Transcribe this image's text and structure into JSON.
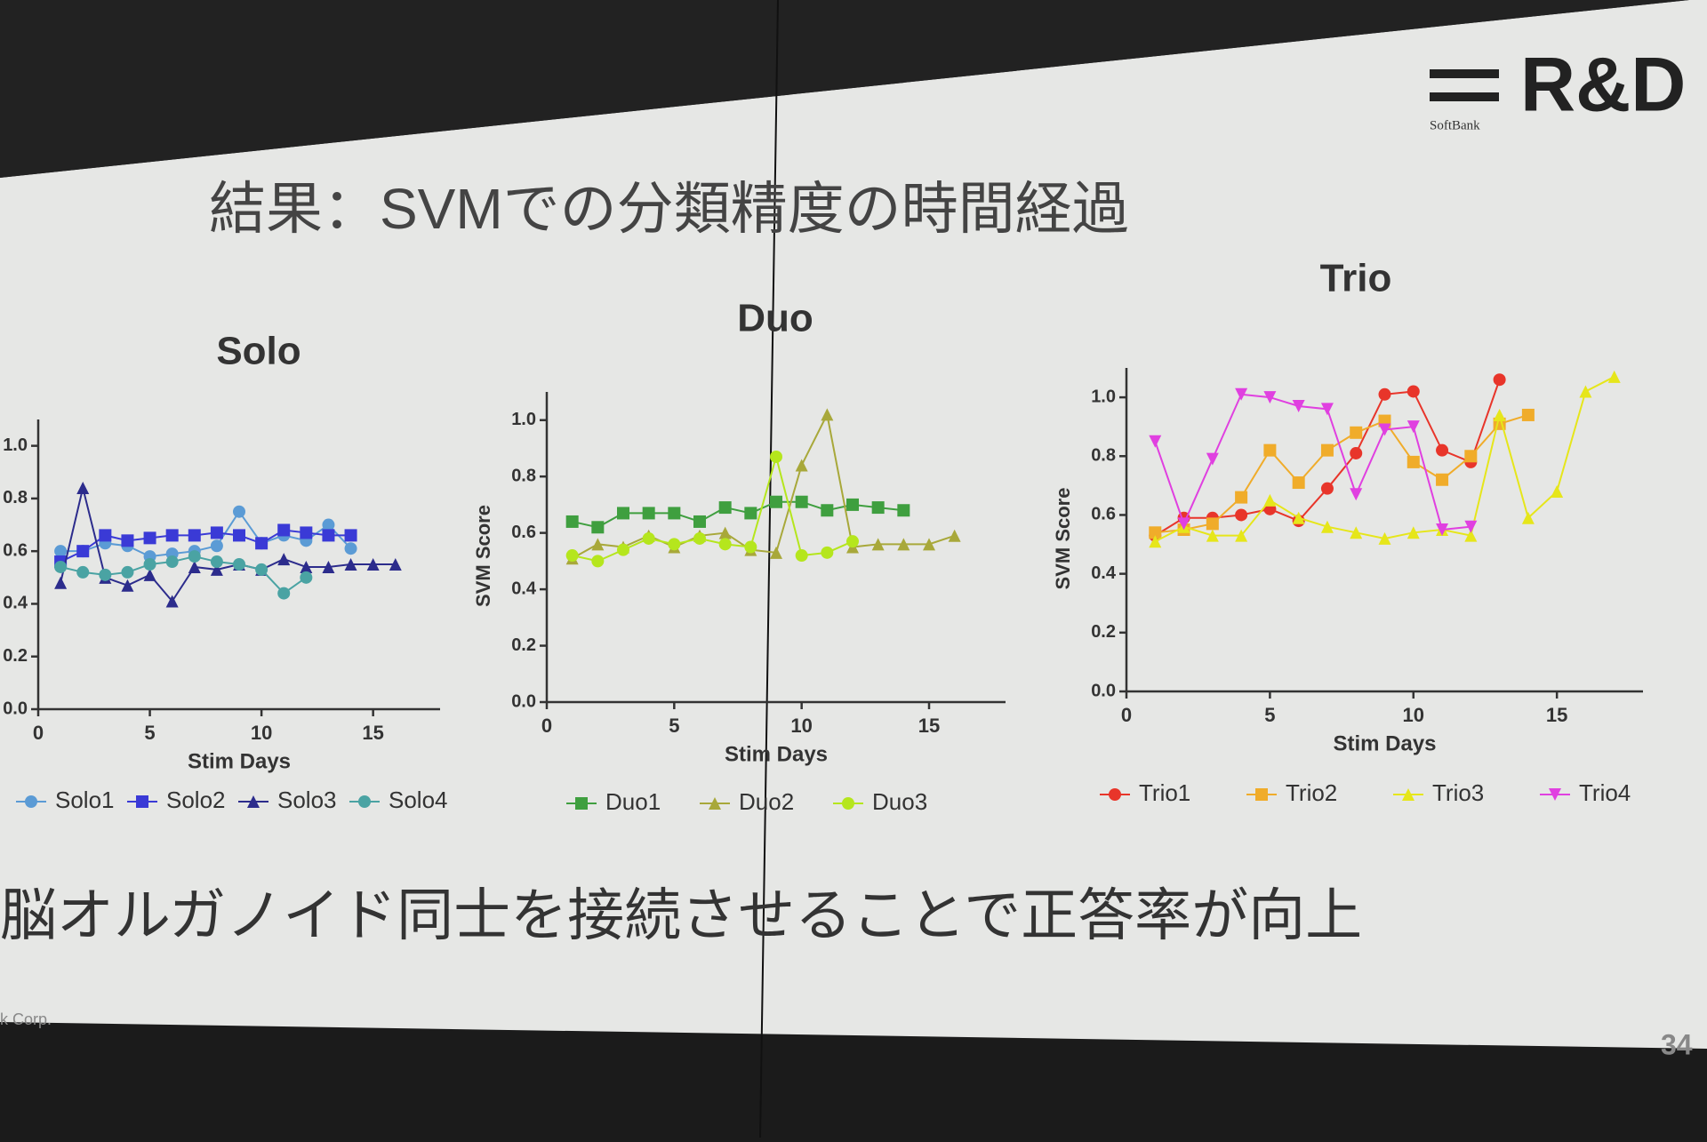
{
  "slide": {
    "title": "結果：SVMでの分類精度の時間経過",
    "logo": "R&D",
    "logo_sub": "SoftBank",
    "message": "脳オルガノイド同士を接続させることで正答率が向上",
    "footer": "k Corp.",
    "page": "34"
  },
  "chart_data": [
    {
      "type": "line",
      "title": "Solo",
      "x_label": "Stim Days",
      "xlim": [
        0,
        18
      ],
      "xticks": [
        0,
        5,
        10,
        15
      ],
      "ylim": [
        0,
        1.1
      ],
      "yticks": [
        {
          "value": 0,
          "label": "0.0"
        },
        0.2,
        0.4,
        0.6,
        0.8,
        {
          "value": 1,
          "label": "1.0"
        }
      ],
      "series": [
        {
          "name": "Solo1",
          "color": "#5b9bd5",
          "marker": "circle",
          "x": [
            1,
            2,
            3,
            4,
            5,
            6,
            7,
            8,
            9,
            10,
            11,
            12,
            13,
            14
          ],
          "values": [
            0.6,
            0.6,
            0.63,
            0.62,
            0.58,
            0.59,
            0.6,
            0.62,
            0.75,
            0.63,
            0.66,
            0.64,
            0.7,
            0.61
          ]
        },
        {
          "name": "Solo2",
          "color": "#3a3ad6",
          "marker": "square",
          "x": [
            1,
            2,
            3,
            4,
            5,
            6,
            7,
            8,
            9,
            10,
            11,
            12,
            13,
            14
          ],
          "values": [
            0.56,
            0.6,
            0.66,
            0.64,
            0.65,
            0.66,
            0.66,
            0.67,
            0.66,
            0.63,
            0.68,
            0.67,
            0.66,
            0.66
          ]
        },
        {
          "name": "Solo3",
          "color": "#2c2c8c",
          "marker": "triangle",
          "x": [
            1,
            2,
            3,
            4,
            5,
            6,
            7,
            8,
            9,
            10,
            11,
            12,
            13,
            14,
            15,
            16
          ],
          "values": [
            0.48,
            0.84,
            0.5,
            0.47,
            0.51,
            0.41,
            0.54,
            0.53,
            0.55,
            0.53,
            0.57,
            0.54,
            0.54,
            0.55,
            0.55,
            0.55
          ]
        },
        {
          "name": "Solo4",
          "color": "#4aa3a3",
          "marker": "circle",
          "x": [
            1,
            2,
            3,
            4,
            5,
            6,
            7,
            8,
            9,
            10,
            11,
            12
          ],
          "values": [
            0.54,
            0.52,
            0.51,
            0.52,
            0.55,
            0.56,
            0.58,
            0.56,
            0.55,
            0.53,
            0.44,
            0.5
          ]
        }
      ]
    },
    {
      "type": "line",
      "title": "Duo",
      "x_label": "Stim Days",
      "y_label": "SVM Score",
      "xlim": [
        0,
        18
      ],
      "xticks": [
        0,
        5,
        10,
        15
      ],
      "ylim": [
        0,
        1.1
      ],
      "yticks": [
        {
          "value": 0,
          "label": "0.0"
        },
        0.2,
        0.4,
        0.6,
        0.8,
        {
          "value": 1,
          "label": "1.0"
        }
      ],
      "series": [
        {
          "name": "Duo1",
          "color": "#3f9f3f",
          "marker": "square",
          "x": [
            1,
            2,
            3,
            4,
            5,
            6,
            7,
            8,
            9,
            10,
            11,
            12,
            13,
            14
          ],
          "values": [
            0.64,
            0.62,
            0.67,
            0.67,
            0.67,
            0.64,
            0.69,
            0.67,
            0.71,
            0.71,
            0.68,
            0.7,
            0.69,
            0.68
          ]
        },
        {
          "name": "Duo2",
          "color": "#a8a83a",
          "marker": "triangle",
          "x": [
            1,
            2,
            3,
            4,
            5,
            6,
            7,
            8,
            9,
            10,
            11,
            12,
            13,
            14,
            15,
            16
          ],
          "values": [
            0.51,
            0.56,
            0.55,
            0.59,
            0.55,
            0.59,
            0.6,
            0.54,
            0.53,
            0.84,
            1.02,
            0.55,
            0.56,
            0.56,
            0.56,
            0.59
          ]
        },
        {
          "name": "Duo3",
          "color": "#b5e61d",
          "marker": "circle",
          "x": [
            1,
            2,
            3,
            4,
            5,
            6,
            7,
            8,
            9,
            10,
            11,
            12
          ],
          "values": [
            0.52,
            0.5,
            0.54,
            0.58,
            0.56,
            0.58,
            0.56,
            0.55,
            0.87,
            0.52,
            0.53,
            0.57
          ]
        }
      ]
    },
    {
      "type": "line",
      "title": "Trio",
      "x_label": "Stim Days",
      "y_label": "SVM Score",
      "xlim": [
        0,
        18
      ],
      "xticks": [
        0,
        5,
        10,
        15
      ],
      "ylim": [
        0,
        1.1
      ],
      "yticks": [
        {
          "value": 0,
          "label": "0.0"
        },
        0.2,
        0.4,
        0.6,
        0.8,
        {
          "value": 1,
          "label": "1.0"
        }
      ],
      "series": [
        {
          "name": "Trio1",
          "color": "#e8352a",
          "marker": "circle",
          "x": [
            1,
            2,
            3,
            4,
            5,
            6,
            7,
            8,
            9,
            10,
            11,
            12,
            13
          ],
          "values": [
            0.53,
            0.59,
            0.59,
            0.6,
            0.62,
            0.58,
            0.69,
            0.81,
            1.01,
            1.02,
            0.82,
            0.78,
            1.06
          ]
        },
        {
          "name": "Trio2",
          "color": "#f0ac2a",
          "marker": "square",
          "x": [
            1,
            2,
            3,
            4,
            5,
            6,
            7,
            8,
            9,
            10,
            11,
            12,
            13,
            14
          ],
          "values": [
            0.54,
            0.55,
            0.57,
            0.66,
            0.82,
            0.71,
            0.82,
            0.88,
            0.92,
            0.78,
            0.72,
            0.8,
            0.91,
            0.94
          ]
        },
        {
          "name": "Trio3",
          "color": "#e6e61a",
          "marker": "triangle",
          "x": [
            1,
            2,
            3,
            4,
            5,
            6,
            7,
            8,
            9,
            10,
            11,
            12,
            13,
            14,
            15,
            16,
            17
          ],
          "values": [
            0.51,
            0.56,
            0.53,
            0.53,
            0.65,
            0.59,
            0.56,
            0.54,
            0.52,
            0.54,
            0.55,
            0.53,
            0.94,
            0.59,
            0.68,
            1.02,
            1.07
          ]
        },
        {
          "name": "Trio4",
          "color": "#e040e0",
          "marker": "triangle-down",
          "x": [
            1,
            2,
            3,
            4,
            5,
            6,
            7,
            8,
            9,
            10,
            11,
            12
          ],
          "values": [
            0.85,
            0.57,
            0.79,
            1.01,
            1.0,
            0.97,
            0.96,
            0.67,
            0.89,
            0.9,
            0.55,
            0.56
          ]
        }
      ]
    }
  ]
}
